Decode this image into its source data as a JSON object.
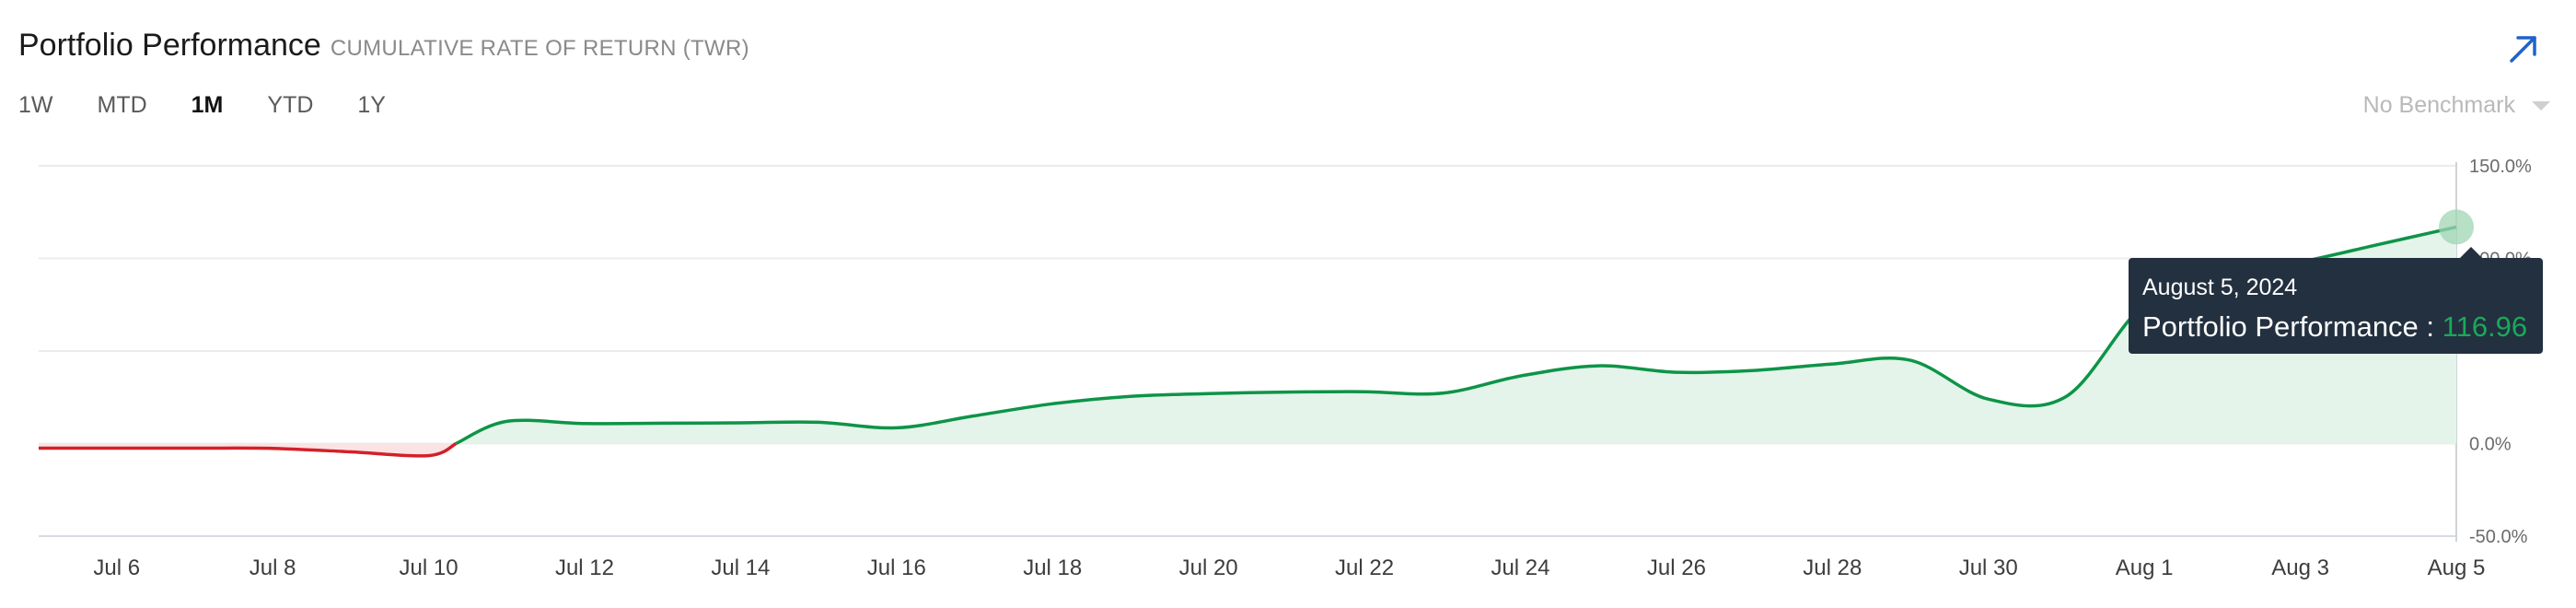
{
  "header": {
    "title": "Portfolio Performance",
    "subtitle": "CUMULATIVE RATE OF RETURN (TWR)",
    "expand_icon": "arrow-up-right-icon"
  },
  "ranges": {
    "items": [
      "1W",
      "MTD",
      "1M",
      "YTD",
      "1Y"
    ],
    "selected": "1M"
  },
  "benchmark": {
    "label": "No Benchmark",
    "caret_icon": "chevron-down-icon"
  },
  "tooltip": {
    "date": "August 5, 2024",
    "label": "Portfolio Performance : ",
    "value": "116.96"
  },
  "colors": {
    "positive": "#0e9447",
    "negative": "#d3202a",
    "positive_fill": "#e4f4ea",
    "negative_fill": "#fbe3e3",
    "accent": "#1f63c9",
    "tooltip_bg": "#23303f"
  },
  "chart_data": {
    "type": "area",
    "title": "Portfolio Performance",
    "ylim": [
      -50,
      150
    ],
    "yticks": [
      -50,
      0,
      50,
      100,
      150
    ],
    "ytick_labels": [
      "-50.0%",
      "0.0%",
      "",
      "100.0%",
      "150.0%"
    ],
    "xtick_labels": [
      "Jul 6",
      "Jul 8",
      "Jul 10",
      "Jul 12",
      "Jul 14",
      "Jul 16",
      "Jul 18",
      "Jul 20",
      "Jul 22",
      "Jul 24",
      "Jul 26",
      "Jul 28",
      "Jul 30",
      "Aug 1",
      "Aug 3",
      "Aug 5"
    ],
    "grid": true,
    "series": [
      {
        "name": "Portfolio Performance",
        "x": [
          "Jul 5",
          "Jul 6",
          "Jul 7",
          "Jul 8",
          "Jul 9",
          "Jul 10",
          "Jul 11",
          "Jul 12",
          "Jul 13",
          "Jul 14",
          "Jul 15",
          "Jul 16",
          "Jul 17",
          "Jul 18",
          "Jul 19",
          "Jul 20",
          "Jul 21",
          "Jul 22",
          "Jul 23",
          "Jul 24",
          "Jul 25",
          "Jul 26",
          "Jul 27",
          "Jul 28",
          "Jul 29",
          "Jul 30",
          "Jul 31",
          "Aug 1",
          "Aug 2",
          "Aug 3",
          "Aug 4",
          "Aug 5"
        ],
        "values": [
          -2.5,
          -2.5,
          -2.5,
          -2.6,
          -4.5,
          -6.5,
          12.0,
          10.8,
          11.0,
          11.2,
          11.5,
          8.5,
          15.0,
          21.5,
          25.5,
          27.0,
          27.8,
          28.0,
          27.2,
          36.5,
          42.0,
          38.5,
          39.5,
          43.0,
          45.0,
          24.0,
          25.5,
          75.0,
          90.5,
          98.0,
          107.5,
          116.96
        ]
      }
    ],
    "highlight": {
      "x": "Aug 5",
      "value": 116.96
    }
  }
}
